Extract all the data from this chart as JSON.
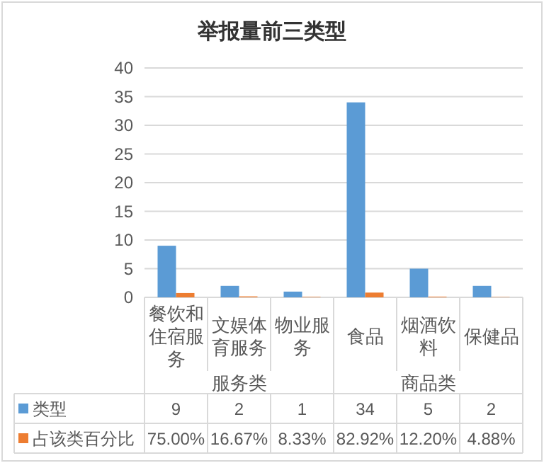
{
  "chart_data": {
    "type": "bar",
    "title": "举报量前三类型",
    "categories": [
      "餐饮和住宿服务",
      "文娱体育服务",
      "物业服务",
      "食品",
      "烟酒饮料",
      "保健品"
    ],
    "series": [
      {
        "name": "类型",
        "color": "#5b9bd5",
        "values": [
          9,
          2,
          1,
          34,
          5,
          2
        ],
        "value_labels": [
          "9",
          "2",
          "1",
          "34",
          "5",
          "2"
        ]
      },
      {
        "name": "占该类百分比",
        "color": "#ed7d31",
        "values": [
          0.75,
          0.1667,
          0.0833,
          0.8292,
          0.122,
          0.0488
        ],
        "value_labels": [
          "75.00%",
          "16.67%",
          "8.33%",
          "82.92%",
          "12.20%",
          "4.88%"
        ]
      }
    ],
    "annotations": [
      "服务类",
      "商品类"
    ],
    "ylim": [
      0,
      40
    ],
    "yticks": [
      0,
      5,
      10,
      15,
      20,
      25,
      30,
      35,
      40
    ],
    "grid": "y",
    "legend": "bottom"
  }
}
